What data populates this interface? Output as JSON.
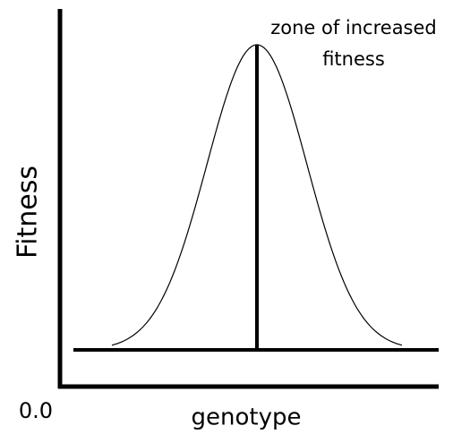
{
  "y_axis_label": "Fitness",
  "x_axis_label": "genotype",
  "origin_label": "0.0",
  "annotation": [
    "zone of increased",
    "fitness"
  ]
}
